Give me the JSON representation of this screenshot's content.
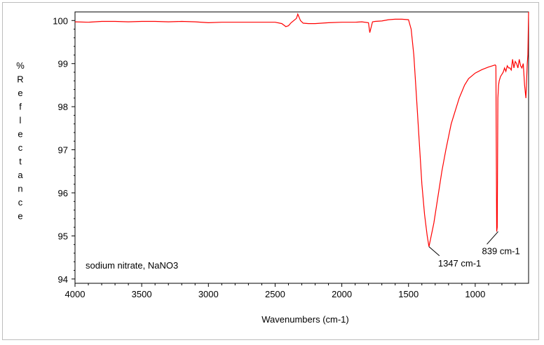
{
  "chart_data": {
    "type": "line",
    "xlabel": "Wavenumbers (cm-1)",
    "ylabel": "%Reflectance",
    "xlim": [
      4000,
      600
    ],
    "ylim": [
      93.9,
      100.2
    ],
    "x_ticks": [
      4000,
      3500,
      3000,
      2500,
      2000,
      1500,
      1000
    ],
    "x_tick_labels": [
      "4000",
      "3500",
      "3000",
      "2500",
      "2000",
      "1500",
      "1000"
    ],
    "y_ticks": [
      94,
      95,
      96,
      97,
      98,
      99,
      100
    ],
    "y_tick_labels": [
      "94",
      "95",
      "96",
      "97",
      "98",
      "99",
      "100"
    ],
    "grid": false,
    "sample_label": "sodium nitrate, NaNO3",
    "line_color": "#ff0000",
    "annotations": [
      {
        "text": "1347 cm-1",
        "x": 1347,
        "y": 94.75
      },
      {
        "text": "839 cm-1",
        "x": 839,
        "y": 95.1
      }
    ],
    "series": [
      {
        "x": [
          4000,
          3900,
          3800,
          3700,
          3600,
          3500,
          3400,
          3300,
          3200,
          3100,
          3000,
          2900,
          2800,
          2700,
          2600,
          2500,
          2450,
          2420,
          2400,
          2380,
          2340,
          2330,
          2310,
          2290,
          2250,
          2200,
          2100,
          2000,
          1900,
          1850,
          1800,
          1790,
          1780,
          1770,
          1750,
          1700,
          1650,
          1600,
          1550,
          1500,
          1480,
          1460,
          1440,
          1420,
          1400,
          1380,
          1360,
          1347,
          1330,
          1310,
          1290,
          1270,
          1250,
          1220,
          1200,
          1180,
          1150,
          1120,
          1100,
          1080,
          1050,
          1000,
          950,
          900,
          870,
          850,
          845,
          839,
          835,
          830,
          825,
          820,
          810,
          800,
          790,
          780,
          770,
          760,
          750,
          740,
          730,
          720,
          710,
          700,
          690,
          680,
          670,
          660,
          650,
          640,
          630,
          620,
          610,
          605,
          600
        ],
        "y": [
          99.97,
          99.96,
          99.98,
          99.98,
          99.97,
          99.98,
          99.98,
          99.97,
          99.98,
          99.97,
          99.95,
          99.96,
          99.96,
          99.96,
          99.96,
          99.96,
          99.93,
          99.86,
          99.88,
          99.95,
          100.05,
          100.15,
          100.0,
          99.94,
          99.93,
          99.93,
          99.95,
          99.96,
          99.96,
          99.97,
          99.95,
          99.72,
          99.85,
          99.97,
          99.98,
          99.99,
          100.02,
          100.03,
          100.03,
          100.02,
          99.8,
          99.2,
          98.2,
          97.2,
          96.2,
          95.5,
          95.0,
          94.75,
          95.0,
          95.3,
          95.7,
          96.1,
          96.5,
          97.0,
          97.3,
          97.6,
          97.9,
          98.2,
          98.35,
          98.5,
          98.65,
          98.78,
          98.86,
          98.92,
          98.95,
          98.97,
          98.95,
          95.1,
          95.2,
          98.2,
          98.5,
          98.6,
          98.7,
          98.75,
          98.8,
          98.9,
          98.82,
          98.95,
          98.9,
          98.9,
          98.85,
          99.1,
          98.9,
          99.05,
          99.0,
          98.9,
          99.1,
          98.95,
          98.9,
          99.0,
          98.5,
          98.2,
          99.0,
          99.2,
          100.2
        ]
      }
    ]
  }
}
